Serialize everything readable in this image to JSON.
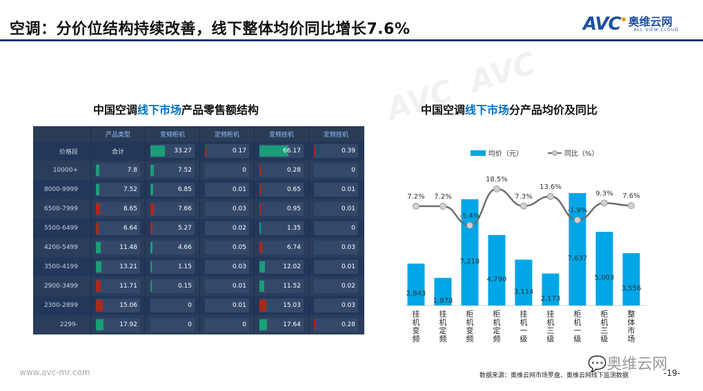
{
  "title": "空调：分价位结构持续改善，线下整体均价同比增长7.6%",
  "logo": {
    "mark": "AVC",
    "cn": "奥维云网",
    "en": "ALL VIEW CLOUD"
  },
  "table": {
    "title_pre": "中国空调",
    "title_hl": "线下市场",
    "title_post": "产品零售额结构",
    "headers": [
      "",
      "产品类型",
      "变频柜机",
      "定频柜机",
      "变频挂机",
      "定频挂机"
    ],
    "rows": [
      {
        "label": "价格段",
        "cells": [
          {
            "v": "合计",
            "c": ""
          },
          {
            "v": "33.27",
            "c": "g"
          },
          {
            "v": "0.17",
            "c": "r"
          },
          {
            "v": "66.17",
            "c": "g"
          },
          {
            "v": "0.39",
            "c": "r"
          }
        ]
      },
      {
        "label": "10000+",
        "cells": [
          {
            "v": "7.8",
            "c": "g"
          },
          {
            "v": "7.52",
            "c": "g"
          },
          {
            "v": "0",
            "c": ""
          },
          {
            "v": "0.28",
            "c": "r"
          },
          {
            "v": "0",
            "c": ""
          }
        ]
      },
      {
        "label": "8000-9999",
        "cells": [
          {
            "v": "7.52",
            "c": "g"
          },
          {
            "v": "6.85",
            "c": "g"
          },
          {
            "v": "0.01",
            "c": ""
          },
          {
            "v": "0.65",
            "c": "r"
          },
          {
            "v": "0.01",
            "c": ""
          }
        ]
      },
      {
        "label": "6500-7999",
        "cells": [
          {
            "v": "8.65",
            "c": "r"
          },
          {
            "v": "7.66",
            "c": "r"
          },
          {
            "v": "0.03",
            "c": ""
          },
          {
            "v": "0.95",
            "c": "r"
          },
          {
            "v": "0.01",
            "c": ""
          }
        ]
      },
      {
        "label": "5500-6499",
        "cells": [
          {
            "v": "6.64",
            "c": "r"
          },
          {
            "v": "5.27",
            "c": "r"
          },
          {
            "v": "0.02",
            "c": ""
          },
          {
            "v": "1.35",
            "c": "g"
          },
          {
            "v": "0",
            "c": ""
          }
        ]
      },
      {
        "label": "4200-5499",
        "cells": [
          {
            "v": "11.48",
            "c": "g"
          },
          {
            "v": "4.66",
            "c": "g"
          },
          {
            "v": "0.05",
            "c": ""
          },
          {
            "v": "6.74",
            "c": "r"
          },
          {
            "v": "0.03",
            "c": ""
          }
        ]
      },
      {
        "label": "3500-4199",
        "cells": [
          {
            "v": "13.21",
            "c": "g"
          },
          {
            "v": "1.15",
            "c": "g"
          },
          {
            "v": "0.03",
            "c": ""
          },
          {
            "v": "12.02",
            "c": "g"
          },
          {
            "v": "0.01",
            "c": ""
          }
        ]
      },
      {
        "label": "2900-3499",
        "cells": [
          {
            "v": "11.71",
            "c": "r"
          },
          {
            "v": "0.15",
            "c": "g"
          },
          {
            "v": "0.01",
            "c": ""
          },
          {
            "v": "11.52",
            "c": "g"
          },
          {
            "v": "0.02",
            "c": ""
          }
        ]
      },
      {
        "label": "2300-2899",
        "cells": [
          {
            "v": "15.06",
            "c": "r"
          },
          {
            "v": "0",
            "c": ""
          },
          {
            "v": "0.01",
            "c": ""
          },
          {
            "v": "15.03",
            "c": "r"
          },
          {
            "v": "0.03",
            "c": ""
          }
        ]
      },
      {
        "label": "2299-",
        "cells": [
          {
            "v": "17.92",
            "c": "g"
          },
          {
            "v": "0",
            "c": ""
          },
          {
            "v": "0",
            "c": ""
          },
          {
            "v": "17.64",
            "c": "g"
          },
          {
            "v": "0.28",
            "c": "r"
          }
        ]
      }
    ],
    "colors": {
      "g": "#1a9e78",
      "r": "#b0281a"
    }
  },
  "chart_data": {
    "type": "bar",
    "title_pre": "中国空调",
    "title_hl": "线下市场",
    "title_post": "分产品均价及同比",
    "categories": [
      "挂机变频",
      "挂机定频",
      "柜机变频",
      "柜机定频",
      "挂机一级",
      "挂机三级",
      "柜机一级",
      "柜机三级",
      "整体市场"
    ],
    "series": [
      {
        "name": "均价（元）",
        "type": "bar",
        "values": [
          2843,
          1878,
          7218,
          4790,
          3114,
          2173,
          7637,
          5003,
          3556
        ],
        "labels": [
          "2,843",
          "1,878",
          "7,218",
          "4,790",
          "3,114",
          "2,173",
          "7,637",
          "5,003",
          "3,556"
        ],
        "color": "#00a6e6"
      },
      {
        "name": "同比（%）",
        "type": "line",
        "values": [
          7.2,
          7.2,
          -5.4,
          18.5,
          7.3,
          13.6,
          -1.9,
          9.3,
          7.6
        ],
        "labels": [
          "7.2%",
          "7.2%",
          "-5.4%",
          "18.5%",
          "7.3%",
          "13.6%",
          "-1.9%",
          "9.3%",
          "7.6%"
        ],
        "color": "#6d6d6d"
      }
    ],
    "legend": "top"
  },
  "footer": {
    "url": "www.avc-mr.com",
    "source": "数据来源：奥维云网市场罗盘、奥维云网线下监测数据",
    "page": "-19-",
    "wechat": "奥维云网"
  }
}
